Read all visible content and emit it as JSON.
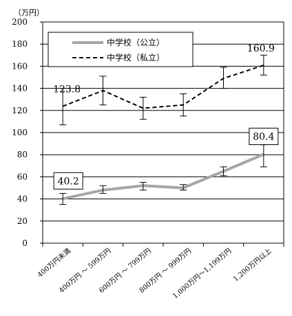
{
  "chart_data": {
    "type": "line",
    "unit_label": "（万円）",
    "categories": [
      "400万円未満",
      "400万円 ～ 599万円",
      "600万円 ～ 799万円",
      "800万円 ～ 999万円",
      "1,000万円～1,199万円",
      "1,200万円以上"
    ],
    "ylim": [
      0,
      200
    ],
    "yticks": [
      "0",
      "20",
      "40",
      "60",
      "80",
      "100",
      "120",
      "140",
      "160",
      "180",
      "200"
    ],
    "grid": true,
    "legend_position": "top-left",
    "series": [
      {
        "name": "中学校（公立）",
        "style": "solid",
        "color": "#a6a6a6",
        "values": [
          40.2,
          48,
          52,
          50,
          65,
          80.4
        ],
        "error_low": [
          35,
          45,
          48,
          48,
          61,
          69
        ],
        "error_high": [
          45,
          52,
          55,
          53,
          69,
          89
        ]
      },
      {
        "name": "中学校（私立）",
        "style": "dashed",
        "color": "#000000",
        "values": [
          123.8,
          138,
          122,
          125,
          149,
          160.9
        ],
        "error_low": [
          107,
          125,
          112,
          115,
          140,
          152
        ],
        "error_high": [
          140,
          151,
          132,
          135,
          159,
          170
        ]
      }
    ],
    "annotations": [
      {
        "text": "123.8",
        "series": 1,
        "index": 0,
        "boxed": false
      },
      {
        "text": "160.9",
        "series": 1,
        "index": 5,
        "boxed": false
      },
      {
        "text": "40.2",
        "series": 0,
        "index": 0,
        "boxed": true
      },
      {
        "text": "80.4",
        "series": 0,
        "index": 5,
        "boxed": true
      }
    ]
  }
}
